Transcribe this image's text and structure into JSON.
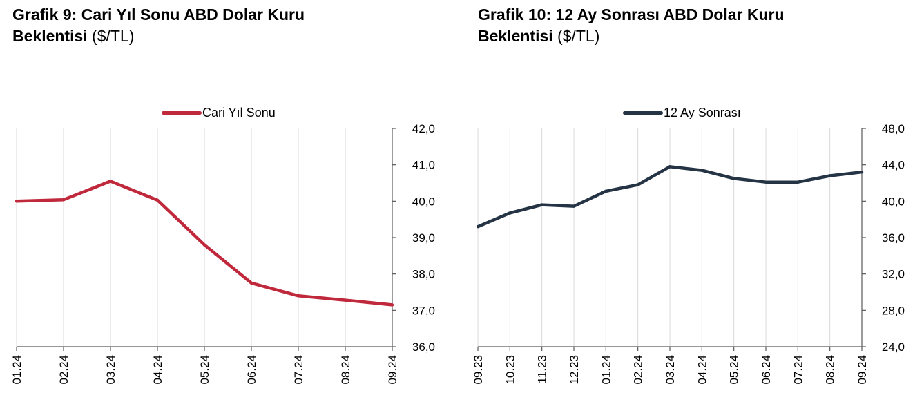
{
  "charts": [
    {
      "title_bold": "Grafik 9: Cari Yıl Sonu ABD Dolar Kuru",
      "title_bold_2": "Beklentisi",
      "title_unit": "($/TL)",
      "legend_label": "Cari Yıl Sonu",
      "line_color": "#c0283c"
    },
    {
      "title_bold": "Grafik 10: 12 Ay Sonrası ABD Dolar Kuru",
      "title_bold_2": "Beklentisi",
      "title_unit": "($/TL)",
      "legend_label": "12 Ay Sonrası",
      "line_color": "#253445"
    }
  ],
  "chart_data": [
    {
      "type": "line",
      "title": "Grafik 9: Cari Yıl Sonu ABD Dolar Kuru Beklentisi ($/TL)",
      "categories": [
        "01.24",
        "02.24",
        "03.24",
        "04.24",
        "05.24",
        "06.24",
        "07.24",
        "08.24",
        "09.24"
      ],
      "series": [
        {
          "name": "Cari Yıl Sonu",
          "values": [
            40.0,
            40.04,
            40.55,
            40.03,
            38.8,
            37.75,
            37.4,
            37.28,
            37.15
          ]
        }
      ],
      "ylim": [
        36.0,
        42.0
      ],
      "yticks": [
        "36,0",
        "37,0",
        "38,0",
        "39,0",
        "40,0",
        "41,0",
        "42,0"
      ],
      "yaxis_side": "right",
      "grid": "vertical",
      "legend_position": "top-center",
      "xlabel": "",
      "ylabel": ""
    },
    {
      "type": "line",
      "title": "Grafik 10: 12 Ay Sonrası ABD Dolar Kuru Beklentisi ($/TL)",
      "categories": [
        "09.23",
        "10.23",
        "11.23",
        "12.23",
        "01.24",
        "02.24",
        "03.24",
        "04.24",
        "05.24",
        "06.24",
        "07.24",
        "08.24",
        "09.24"
      ],
      "series": [
        {
          "name": "12 Ay Sonrası",
          "values": [
            37.2,
            38.7,
            39.6,
            39.45,
            41.1,
            41.8,
            43.8,
            43.4,
            42.5,
            42.1,
            42.1,
            42.8,
            43.2
          ]
        }
      ],
      "ylim": [
        24.0,
        48.0
      ],
      "yticks": [
        "24,0",
        "28,0",
        "32,0",
        "36,0",
        "40,0",
        "44,0",
        "48,0"
      ],
      "yaxis_side": "right",
      "grid": "vertical",
      "legend_position": "top-center",
      "xlabel": "",
      "ylabel": ""
    }
  ]
}
